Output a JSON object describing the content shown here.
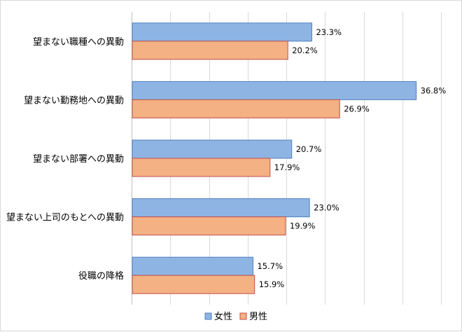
{
  "chart_data": {
    "type": "bar",
    "orientation": "horizontal",
    "categories": [
      "望まない職種への異動",
      "望まない勤務地への異動",
      "望まない部署への異動",
      "望まない上司のもとへの異動",
      "役職の降格"
    ],
    "series": [
      {
        "name": "女性",
        "values": [
          23.3,
          36.8,
          20.7,
          23.0,
          15.7
        ],
        "labels": [
          "23.3%",
          "36.8%",
          "20.7%",
          "23.0%",
          "15.7%"
        ],
        "color": "#8eb4e3",
        "border": "#4f81bd"
      },
      {
        "name": "男性",
        "values": [
          20.2,
          26.9,
          17.9,
          19.9,
          15.9
        ],
        "labels": [
          "20.2%",
          "26.9%",
          "17.9%",
          "19.9%",
          "15.9%"
        ],
        "color": "#f4b183",
        "border": "#c0504d"
      }
    ],
    "xlim": [
      0,
      40
    ],
    "grid": true,
    "legend_position": "bottom"
  }
}
